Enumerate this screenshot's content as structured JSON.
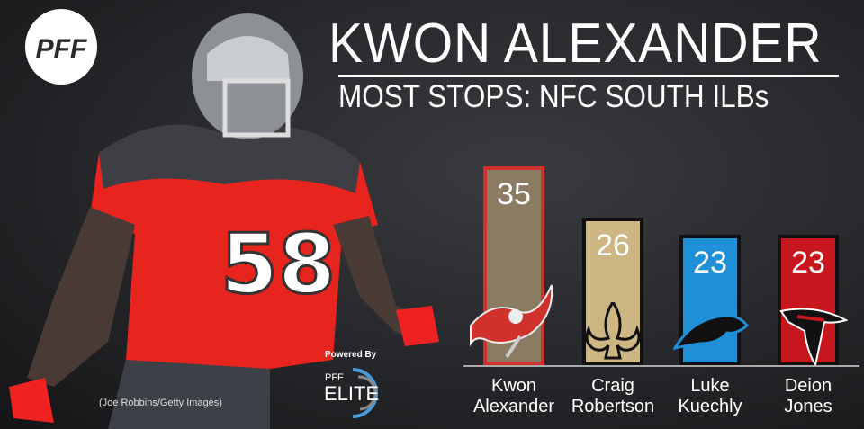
{
  "header": {
    "logo": "PFF",
    "title": "KWON ALEXANDER",
    "subtitle": "MOST STOPS: NFC SOUTH ILBs"
  },
  "photo": {
    "jersey_number": "58",
    "credit": "(Joe Robbins/Getty Images)"
  },
  "powered_by": {
    "label": "Powered By",
    "brand_small": "PFF",
    "brand_large": "ELITE"
  },
  "chart_data": {
    "type": "bar",
    "title": "MOST STOPS: NFC SOUTH ILBs",
    "categories": [
      "Kwon Alexander",
      "Craig Robertson",
      "Luke Kuechly",
      "Deion Jones"
    ],
    "name_lines": [
      [
        "Kwon",
        "Alexander"
      ],
      [
        "Craig",
        "Robertson"
      ],
      [
        "Luke",
        "Kuechly"
      ],
      [
        "Deion",
        "Jones"
      ]
    ],
    "values": [
      35,
      26,
      23,
      23
    ],
    "teams": [
      "buccaneers-flag",
      "saints-fleur-de-lis",
      "panthers",
      "falcons"
    ],
    "colors": [
      "#8b7b62",
      "#cdb684",
      "#1f8fd8",
      "#c8161f"
    ],
    "border_colors": [
      "#d0312d",
      "#111111",
      "#111111",
      "#111111"
    ],
    "ylim": [
      0,
      35
    ],
    "grid": false
  }
}
